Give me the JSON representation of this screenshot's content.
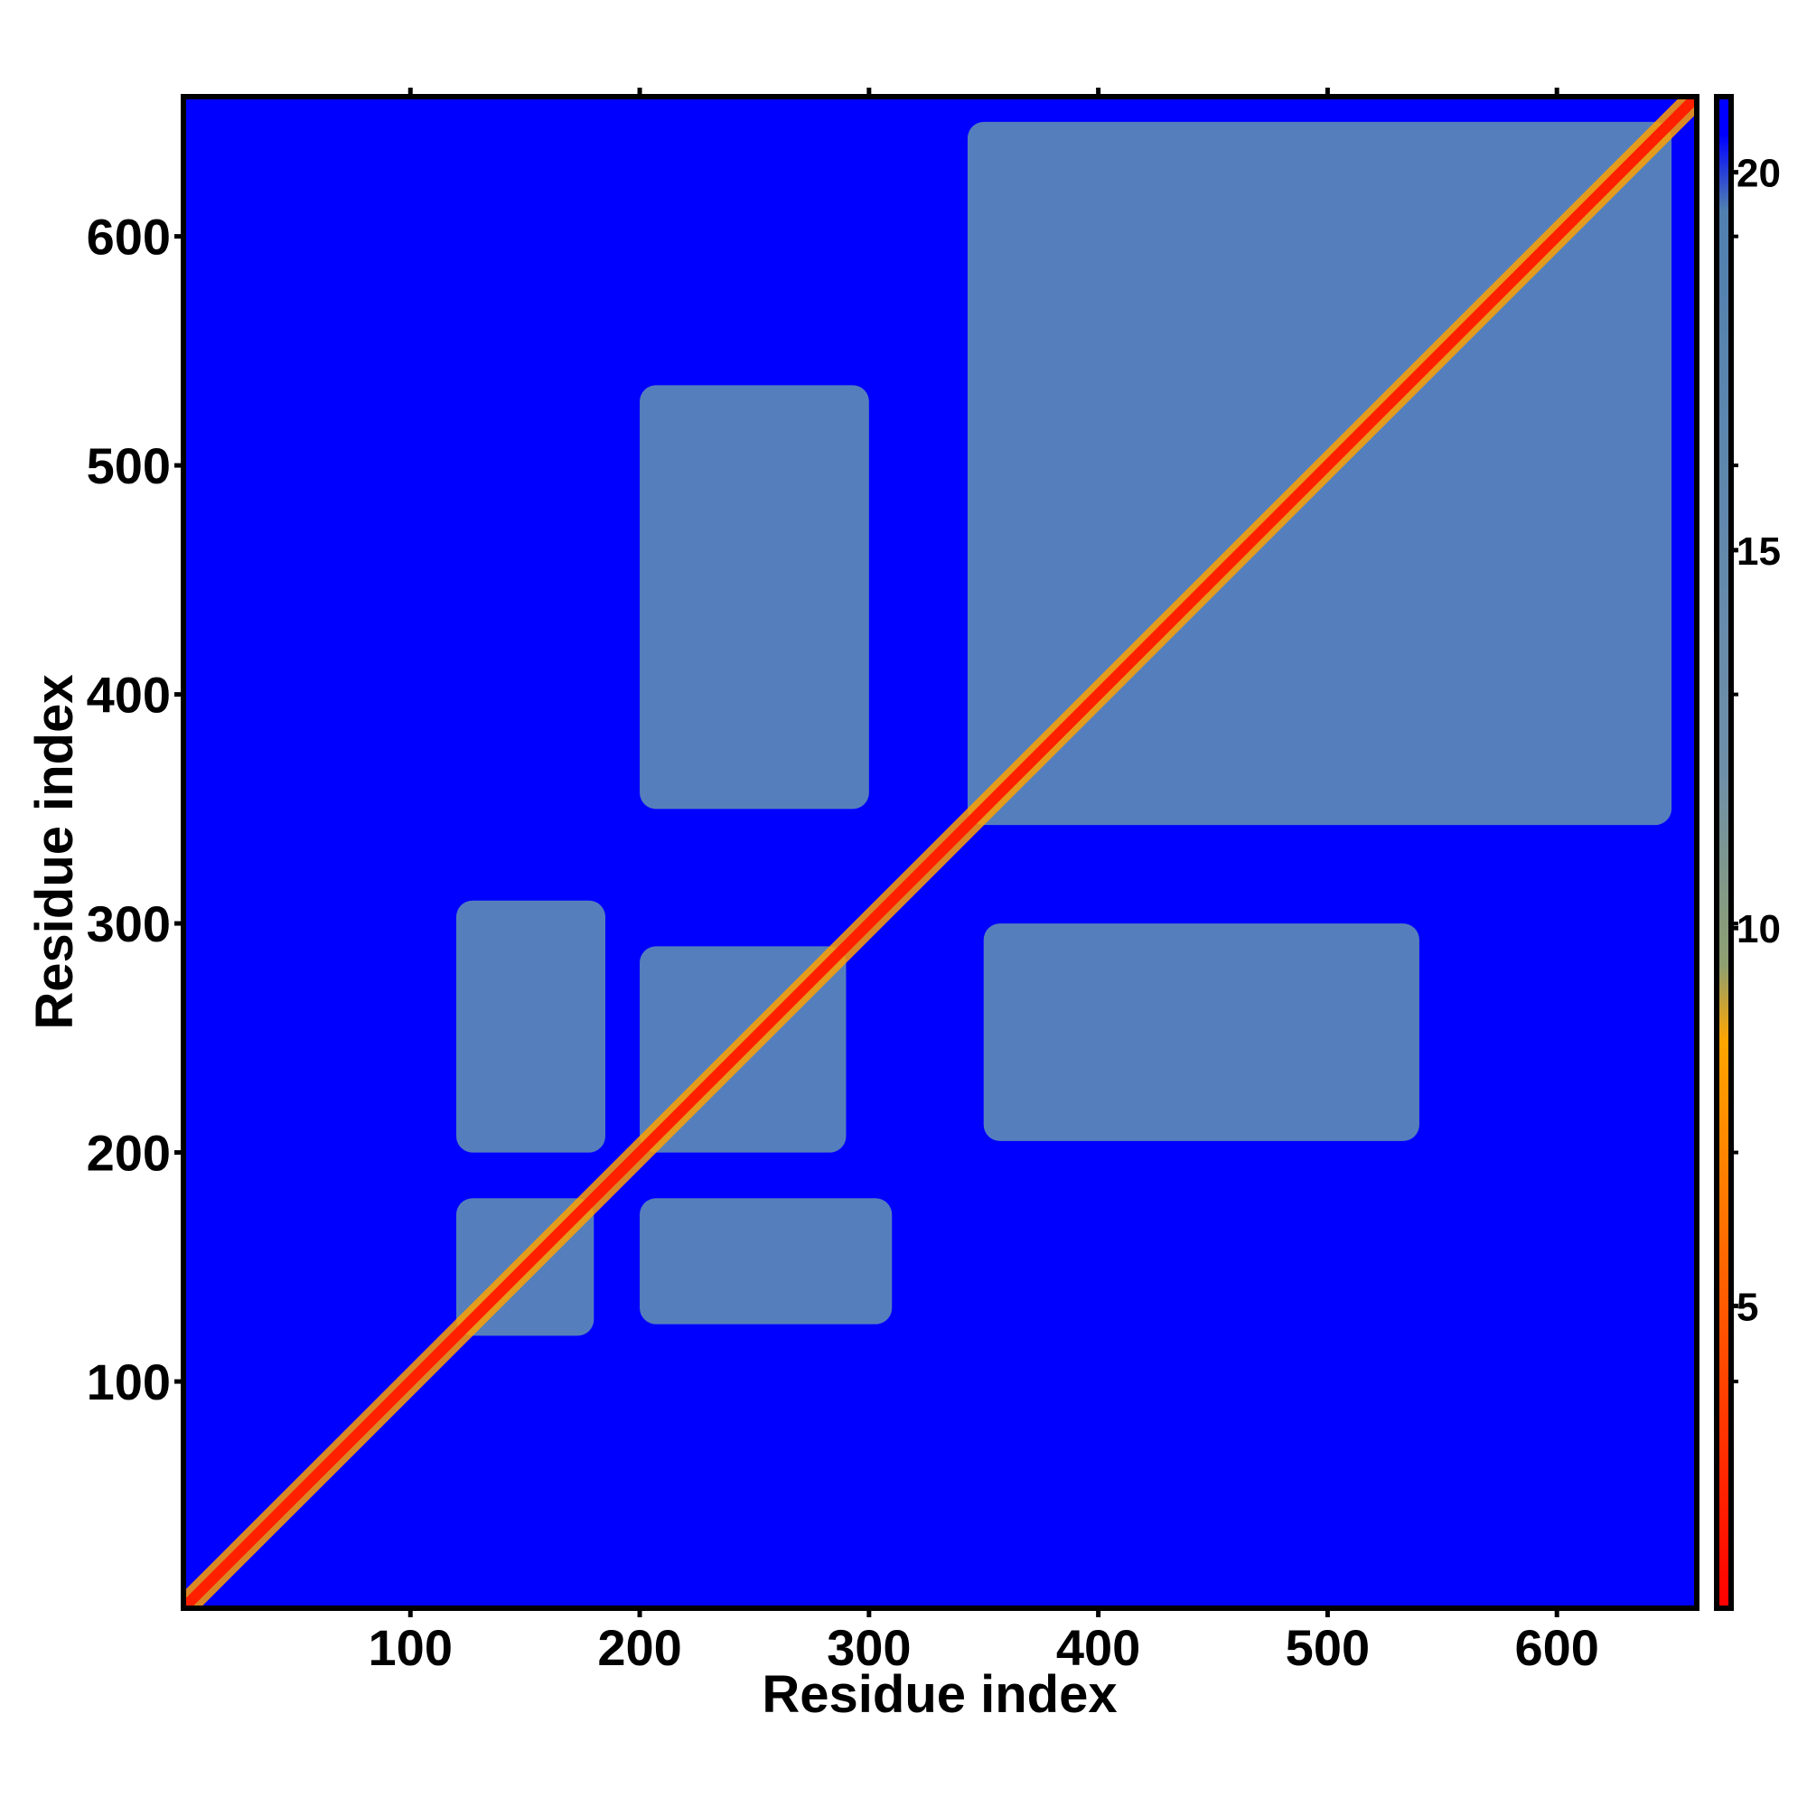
{
  "chart_data": {
    "type": "heatmap",
    "title": "",
    "xlabel": "Residue index",
    "ylabel": "Residue index",
    "xlim": [
      1,
      661
    ],
    "ylim": [
      1,
      661
    ],
    "x_ticks": [
      100,
      200,
      300,
      400,
      500,
      600
    ],
    "y_ticks": [
      100,
      200,
      300,
      400,
      500,
      600
    ],
    "colorbar": {
      "range": [
        1,
        21
      ],
      "ticks": [
        5,
        10,
        15,
        20
      ],
      "stops": [
        {
          "value": 1,
          "color": "#ff0000"
        },
        {
          "value": 5,
          "color": "#ff5a00"
        },
        {
          "value": 8.5,
          "color": "#ffa500"
        },
        {
          "value": 9.5,
          "color": "#8fa070"
        },
        {
          "value": 12,
          "color": "#6f8fa8"
        },
        {
          "value": 19.5,
          "color": "#5080b0"
        },
        {
          "value": 20.5,
          "color": "#0000ff"
        },
        {
          "value": 21,
          "color": "#0000ff"
        }
      ]
    },
    "background_value": 21,
    "background_color": "#0000ff",
    "domain_color": "#5a86b8",
    "diagonal_color": "#ff2000",
    "diagonal_halo_color": "#ffa000",
    "regions": [
      {
        "x": [
          343,
          650
        ],
        "y": [
          343,
          650
        ],
        "value": 16
      },
      {
        "x": [
          120,
          180
        ],
        "y": [
          120,
          180
        ],
        "value": 14
      },
      {
        "x": [
          200,
          290
        ],
        "y": [
          200,
          290
        ],
        "value": 14
      },
      {
        "x": [
          120,
          185
        ],
        "y": [
          200,
          310
        ],
        "value": 15
      },
      {
        "x": [
          200,
          310
        ],
        "y": [
          125,
          180
        ],
        "value": 15
      },
      {
        "x": [
          350,
          540
        ],
        "y": [
          205,
          300
        ],
        "value": 17
      },
      {
        "x": [
          200,
          300
        ],
        "y": [
          350,
          535
        ],
        "value": 17
      }
    ]
  }
}
